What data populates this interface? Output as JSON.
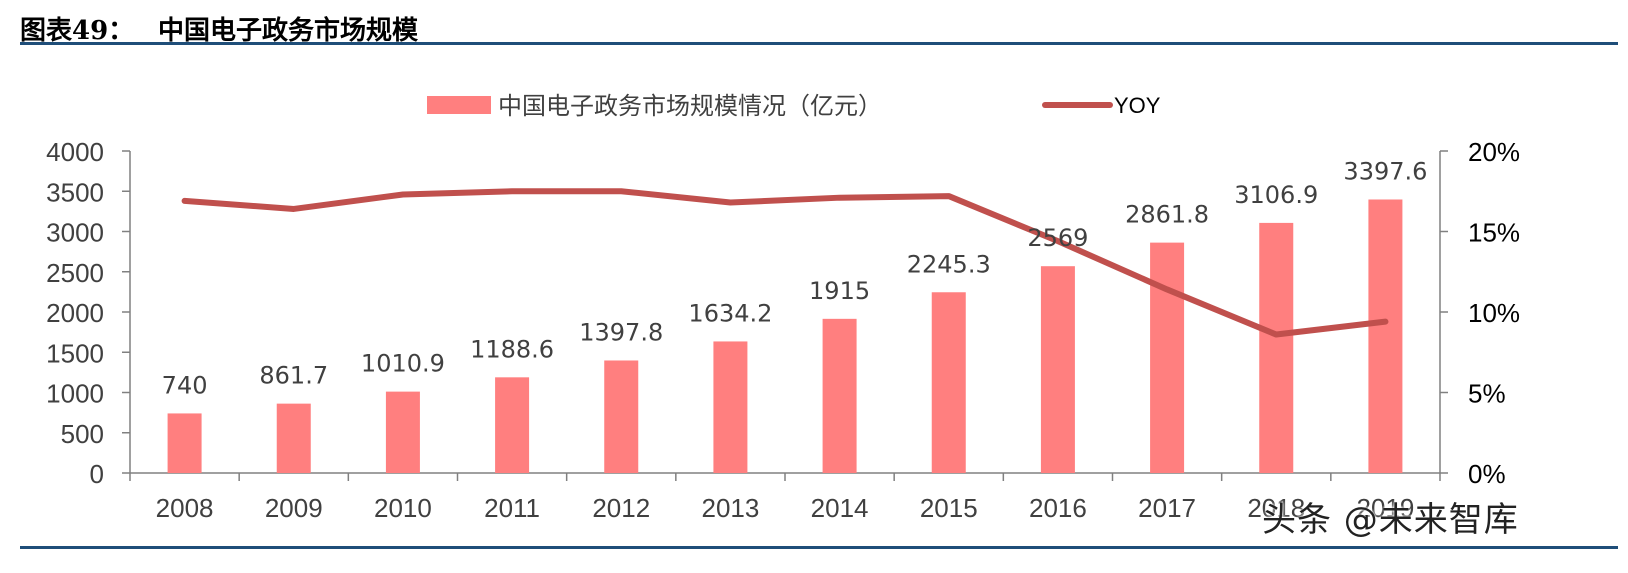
{
  "header": {
    "label": "图表49：",
    "title": "中国电子政务市场规模"
  },
  "watermark": "头条 @未来智库",
  "colors": {
    "bar": "#ff7f7f",
    "line": "#c0504d",
    "rule": "#1f4e79",
    "axis": "#808080",
    "text": "#404040"
  },
  "chart_data": {
    "type": "bar",
    "categories": [
      "2008",
      "2009",
      "2010",
      "2011",
      "2012",
      "2013",
      "2014",
      "2015",
      "2016",
      "2017",
      "2018",
      "2019"
    ],
    "series": [
      {
        "name": "中国电子政务市场规模情况（亿元）",
        "type": "bar",
        "axis": "left",
        "values": [
          740,
          861.7,
          1010.9,
          1188.6,
          1397.8,
          1634.2,
          1915,
          2245.3,
          2569,
          2861.8,
          3106.9,
          3397.6
        ],
        "labels": [
          "740",
          "861.7",
          "1010.9",
          "1188.6",
          "1397.8",
          "1634.2",
          "1915",
          "2245.3",
          "2569",
          "2861.8",
          "3106.9",
          "3397.6"
        ]
      },
      {
        "name": "YOY",
        "type": "line",
        "axis": "right",
        "values": [
          16.9,
          16.4,
          17.3,
          17.5,
          17.5,
          16.8,
          17.1,
          17.2,
          14.4,
          11.4,
          8.6,
          9.4
        ]
      }
    ],
    "y_left": {
      "min": 0,
      "max": 4000,
      "ticks": [
        "0",
        "500",
        "1000",
        "1500",
        "2000",
        "2500",
        "3000",
        "3500",
        "4000"
      ]
    },
    "y_right": {
      "min": 0,
      "max": 20,
      "ticks": [
        "0%",
        "5%",
        "10%",
        "15%",
        "20%"
      ]
    },
    "legend": "top-center",
    "grid": false
  }
}
